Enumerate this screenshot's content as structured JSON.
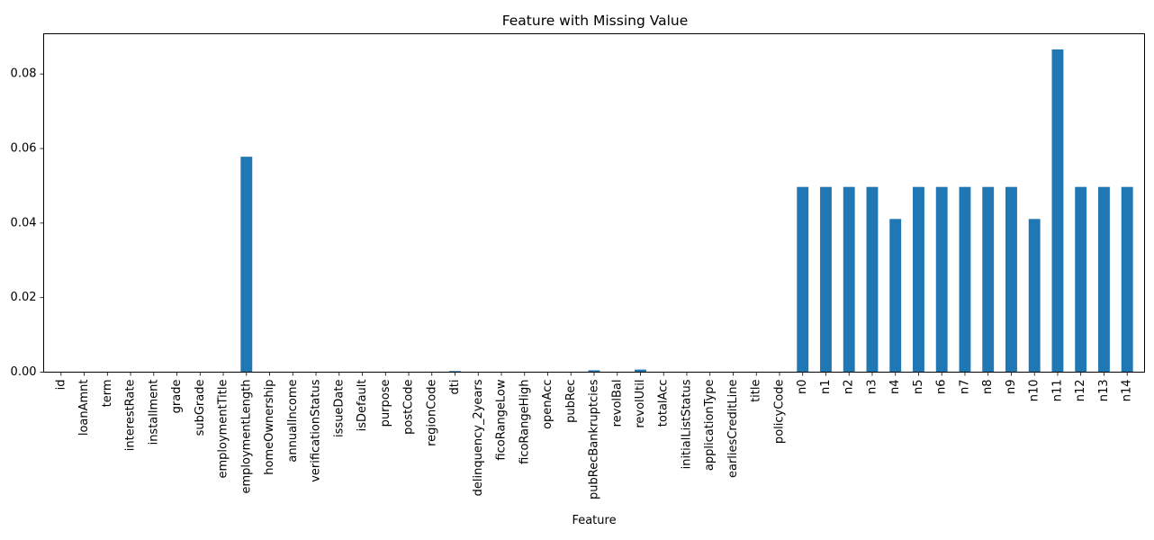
{
  "chart_data": {
    "type": "bar",
    "title": "Feature with Missing Value",
    "xlabel": "Feature",
    "ylabel": "",
    "ylim": [
      0,
      0.0908
    ],
    "yticks": [
      0.0,
      0.02,
      0.04,
      0.06,
      0.08
    ],
    "ytick_labels": [
      "0.00",
      "0.02",
      "0.04",
      "0.06",
      "0.08"
    ],
    "bar_color": "#1f77b4",
    "grid": false,
    "legend": "none",
    "categories": [
      "id",
      "loanAmnt",
      "term",
      "interestRate",
      "installment",
      "grade",
      "subGrade",
      "employmentTitle",
      "employmentLength",
      "homeOwnership",
      "annualIncome",
      "verificationStatus",
      "issueDate",
      "isDefault",
      "purpose",
      "postCode",
      "regionCode",
      "dti",
      "delinquency_2years",
      "ficoRangeLow",
      "ficoRangeHigh",
      "openAcc",
      "pubRec",
      "pubRecBankruptcies",
      "revolBal",
      "revolUtil",
      "totalAcc",
      "initialListStatus",
      "applicationType",
      "earliesCreditLine",
      "title",
      "policyCode",
      "n0",
      "n1",
      "n2",
      "n3",
      "n4",
      "n5",
      "n6",
      "n7",
      "n8",
      "n9",
      "n10",
      "n11",
      "n12",
      "n13",
      "n14"
    ],
    "values": [
      0,
      0,
      0,
      0,
      0,
      0,
      6.3e-06,
      0,
      0.0578,
      0,
      0,
      0,
      0,
      0,
      0,
      1.3e-06,
      0,
      0.0003,
      0,
      0,
      0,
      0,
      0,
      0.0005,
      0,
      0.0007,
      0,
      0,
      0,
      0,
      1.3e-06,
      0,
      0.0497,
      0.0497,
      0.0497,
      0.0497,
      0.0411,
      0.0497,
      0.0497,
      0.0497,
      0.0497,
      0.0497,
      0.0411,
      0.0866,
      0.0497,
      0.0497,
      0.0497
    ]
  }
}
